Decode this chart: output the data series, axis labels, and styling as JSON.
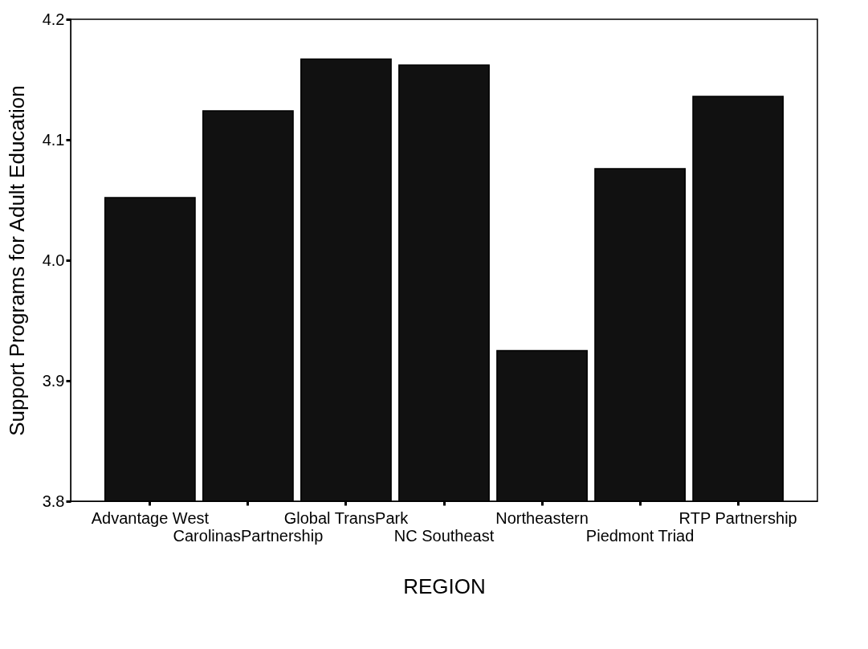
{
  "chart_data": {
    "type": "bar",
    "xlabel": "REGION",
    "ylabel": "Support Programs for Adult Education",
    "categories": [
      "Advantage West",
      "CarolinasPartnership",
      "Global TransPark",
      "NC Southeast",
      "Northeastern",
      "Piedmont Triad",
      "RTP Partnership"
    ],
    "values": [
      4.052,
      4.124,
      4.167,
      4.162,
      3.925,
      4.076,
      4.136
    ],
    "color": "#111111",
    "ylim": [
      3.8,
      4.2
    ],
    "yticks": [
      3.8,
      3.9,
      {
        "value": 4,
        "label": "4.0"
      },
      4.1,
      4.2
    ],
    "grid": false
  }
}
